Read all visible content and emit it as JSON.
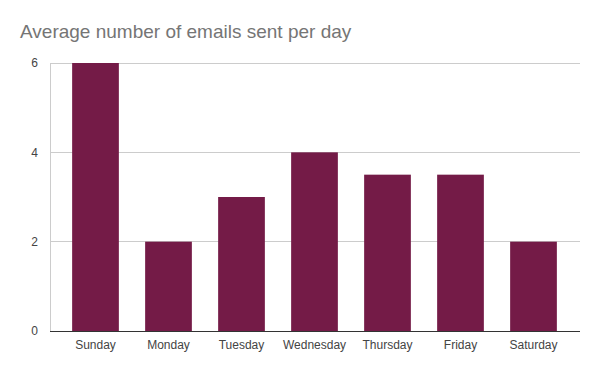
{
  "chart_data": {
    "type": "bar",
    "title": "Average number of emails sent per day",
    "categories": [
      "Sunday",
      "Monday",
      "Tuesday",
      "Wednesday",
      "Thursday",
      "Friday",
      "Saturday"
    ],
    "values": [
      6,
      2,
      3,
      4,
      3.5,
      3.5,
      2
    ],
    "color": "#741b47",
    "ylim": [
      0,
      6
    ],
    "yticks": [
      0,
      2,
      4,
      6
    ],
    "grid": true
  }
}
